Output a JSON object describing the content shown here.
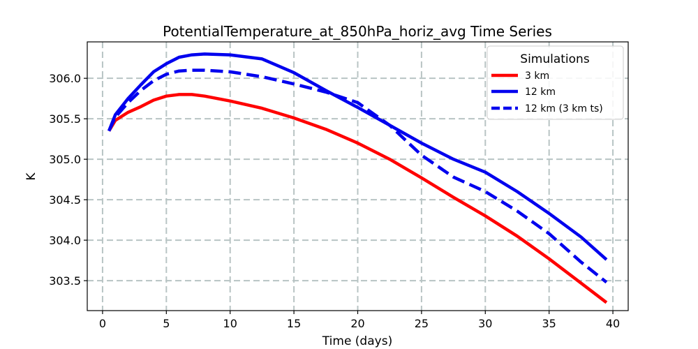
{
  "chart_data": {
    "type": "line",
    "title": "PotentialTemperature_at_850hPa_horiz_avg Time Series",
    "xlabel": "Time (days)",
    "ylabel": "K",
    "xlim": [
      -1.2,
      41.2
    ],
    "ylim": [
      303.13,
      306.45
    ],
    "xticks": [
      0,
      5,
      10,
      15,
      20,
      25,
      30,
      35,
      40
    ],
    "yticks": [
      303.5,
      304.0,
      304.5,
      305.0,
      305.5,
      306.0
    ],
    "ytick_labels": [
      "303.5",
      "304.0",
      "304.5",
      "305.0",
      "305.5",
      "306.0"
    ],
    "grid": true,
    "legend": {
      "title": "Simulations",
      "position": "top-right"
    },
    "x": [
      0.5,
      1.0,
      2.0,
      3.0,
      4.0,
      5.0,
      6.0,
      7.0,
      8.0,
      10.0,
      12.5,
      15.0,
      17.5,
      20.0,
      22.5,
      25.0,
      27.5,
      30.0,
      32.5,
      35.0,
      37.5,
      39.5
    ],
    "series": [
      {
        "name": "3 km",
        "color": "#ff0000",
        "style": "solid",
        "values": [
          305.35,
          305.48,
          305.58,
          305.65,
          305.73,
          305.78,
          305.8,
          305.8,
          305.78,
          305.72,
          305.63,
          305.51,
          305.37,
          305.2,
          305.0,
          304.77,
          304.53,
          304.3,
          304.05,
          303.77,
          303.47,
          303.23
        ]
      },
      {
        "name": "12 km",
        "color": "#0000ee",
        "style": "solid",
        "values": [
          305.35,
          305.55,
          305.75,
          305.92,
          306.08,
          306.18,
          306.26,
          306.29,
          306.3,
          306.29,
          306.24,
          306.07,
          305.85,
          305.64,
          305.42,
          305.2,
          305.0,
          304.84,
          304.6,
          304.33,
          304.04,
          303.76
        ]
      },
      {
        "name": "12 km (3 km ts)",
        "color": "#0000ee",
        "style": "dashed",
        "values": [
          305.35,
          305.52,
          305.7,
          305.85,
          305.97,
          306.05,
          306.09,
          306.1,
          306.1,
          306.08,
          306.02,
          305.93,
          305.83,
          305.7,
          305.42,
          305.05,
          304.78,
          304.6,
          304.36,
          304.08,
          303.73,
          303.48
        ]
      }
    ]
  }
}
